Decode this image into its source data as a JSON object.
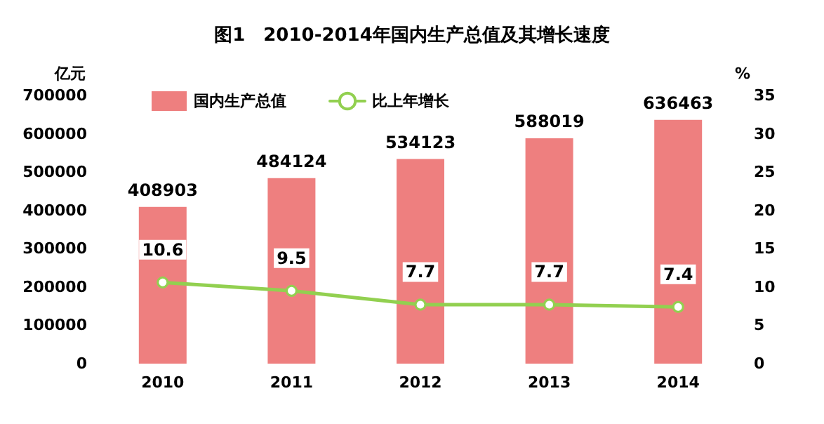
{
  "chart_data": {
    "type": "bar",
    "title": "图1　2010-2014年国内生产总值及其增长速度",
    "ylabel": "亿元",
    "y2label": "%",
    "categories": [
      "2010",
      "2011",
      "2012",
      "2013",
      "2014"
    ],
    "series": [
      {
        "name": "国内生产总值",
        "color": "#ee7f7f",
        "values": [
          408903,
          484124,
          534123,
          588019,
          636463
        ]
      },
      {
        "name": "比上年增长",
        "type": "line",
        "axis": "y2",
        "color": "#92d050",
        "values": [
          10.6,
          9.5,
          7.7,
          7.7,
          7.4
        ]
      }
    ],
    "ylim": [
      0,
      700000
    ],
    "yticks": [
      0,
      100000,
      200000,
      300000,
      400000,
      500000,
      600000,
      700000
    ],
    "y2lim": [
      0,
      35
    ],
    "y2ticks": [
      0,
      5,
      10,
      15,
      20,
      25,
      30,
      35
    ],
    "data_labels": true,
    "legend": "top left",
    "grid": false,
    "marker": "circle",
    "line_style": "solid"
  }
}
